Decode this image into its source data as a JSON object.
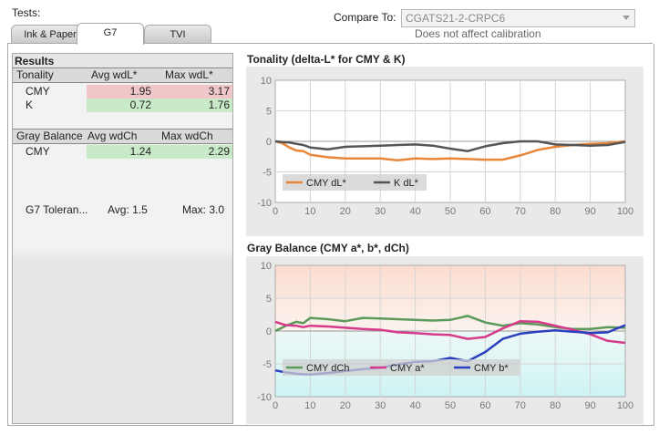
{
  "header": {
    "tests_label": "Tests:",
    "compare_label": "Compare To:",
    "compare_value": "CGATS21-2-CRPC6",
    "compare_hint": "Does not affect calibration"
  },
  "tabs": [
    {
      "label": "Ink & Paper"
    },
    {
      "label": "G7",
      "active": true
    },
    {
      "label": "TVI"
    }
  ],
  "results": {
    "title": "Results",
    "tonality": {
      "headers": [
        "Tonality",
        "Avg wdL*",
        "Max wdL*"
      ],
      "rows": [
        {
          "name": "CMY",
          "avg": "1.95",
          "max": "3.17"
        },
        {
          "name": "K",
          "avg": "0.72",
          "max": "1.76"
        }
      ]
    },
    "gray": {
      "headers": [
        "Gray Balance",
        "Avg wdCh",
        "Max wdCh"
      ],
      "rows": [
        {
          "name": "CMY",
          "avg": "1.24",
          "max": "2.29"
        }
      ]
    },
    "tolerance": {
      "label": "G7 Toleran...",
      "avg": "Avg: 1.5",
      "max": "Max: 3.0"
    }
  },
  "colors": {
    "cmy_dl": "#e8863a",
    "k_dl": "#555555",
    "cmy_dch": "#5c9a5c",
    "cmy_a": "#d63a8a",
    "cmy_b": "#2b3fbf",
    "bad": "#f1c6c9",
    "good": "#c9eac9"
  },
  "chart_data": [
    {
      "type": "line",
      "title": "Tonality (delta-L* for CMY & K)",
      "xlim": [
        0,
        100
      ],
      "ylim": [
        -10,
        10
      ],
      "xticks": [
        "0",
        "10",
        "20",
        "30",
        "40",
        "50",
        "60",
        "70",
        "80",
        "90",
        "100"
      ],
      "yticks": [
        "10",
        "5",
        "0",
        "-5",
        "-10"
      ],
      "legend": "inside-bottom-left",
      "series": [
        {
          "name": "CMY dL*",
          "x": [
            0,
            2,
            4,
            6,
            8,
            10,
            15,
            20,
            25,
            30,
            35,
            40,
            45,
            50,
            55,
            60,
            65,
            70,
            75,
            80,
            85,
            90,
            95,
            100
          ],
          "values": [
            0,
            -0.3,
            -1.0,
            -1.5,
            -1.6,
            -2.2,
            -2.6,
            -2.8,
            -2.8,
            -2.8,
            -3.1,
            -2.8,
            -2.9,
            -2.8,
            -2.9,
            -3.0,
            -3.0,
            -2.3,
            -1.4,
            -0.9,
            -0.6,
            -0.4,
            -0.3,
            0
          ]
        },
        {
          "name": "K dL*",
          "x": [
            0,
            2,
            4,
            6,
            8,
            10,
            15,
            20,
            25,
            30,
            35,
            40,
            45,
            50,
            55,
            60,
            65,
            70,
            75,
            80,
            85,
            90,
            95,
            100
          ],
          "values": [
            0,
            -0.1,
            -0.2,
            -0.4,
            -0.6,
            -1.0,
            -1.3,
            -0.9,
            -0.8,
            -0.7,
            -0.6,
            -0.5,
            -0.7,
            -1.2,
            -1.6,
            -0.8,
            -0.3,
            0.0,
            0.0,
            -0.5,
            -0.6,
            -0.7,
            -0.6,
            -0.1
          ]
        }
      ]
    },
    {
      "type": "line",
      "title": "Gray Balance (CMY a*, b*, dCh)",
      "xlim": [
        0,
        100
      ],
      "ylim": [
        -10,
        10
      ],
      "xticks": [
        "0",
        "10",
        "20",
        "30",
        "40",
        "50",
        "60",
        "70",
        "80",
        "90",
        "100"
      ],
      "yticks": [
        "10",
        "5",
        "0",
        "-5",
        "-10"
      ],
      "legend": "inside-bottom-left",
      "series": [
        {
          "name": "CMY dCh",
          "x": [
            0,
            3,
            6,
            8,
            10,
            15,
            20,
            25,
            30,
            35,
            40,
            45,
            50,
            55,
            60,
            65,
            70,
            75,
            80,
            85,
            90,
            95,
            100
          ],
          "values": [
            0,
            0.8,
            1.4,
            1.2,
            2.0,
            1.8,
            1.5,
            2.0,
            1.9,
            1.8,
            1.7,
            1.6,
            1.7,
            2.3,
            1.3,
            0.8,
            1.2,
            1.0,
            0.6,
            0.3,
            0.3,
            0.6,
            0.5
          ]
        },
        {
          "name": "CMY a*",
          "x": [
            0,
            3,
            6,
            8,
            10,
            15,
            20,
            25,
            30,
            35,
            40,
            45,
            50,
            55,
            60,
            65,
            70,
            75,
            80,
            85,
            90,
            95,
            100
          ],
          "values": [
            1.4,
            0.9,
            0.8,
            0.6,
            0.8,
            0.7,
            0.5,
            0.3,
            0.2,
            -0.2,
            -0.3,
            -0.5,
            -0.6,
            -1.2,
            -0.9,
            0.4,
            1.5,
            1.4,
            0.8,
            0.2,
            -0.5,
            -1.5,
            -1.8
          ]
        },
        {
          "name": "CMY b*",
          "x": [
            0,
            3,
            6,
            8,
            10,
            15,
            20,
            25,
            30,
            35,
            40,
            45,
            50,
            55,
            60,
            65,
            70,
            75,
            80,
            85,
            90,
            95,
            100
          ],
          "values": [
            -6.0,
            -6.3,
            -6.5,
            -6.6,
            -6.6,
            -6.4,
            -6.1,
            -5.8,
            -5.6,
            -5.1,
            -4.7,
            -4.6,
            -4.1,
            -4.6,
            -3.2,
            -1.2,
            -0.4,
            -0.1,
            0.1,
            -0.1,
            -0.3,
            -0.2,
            0.9
          ]
        }
      ]
    }
  ]
}
